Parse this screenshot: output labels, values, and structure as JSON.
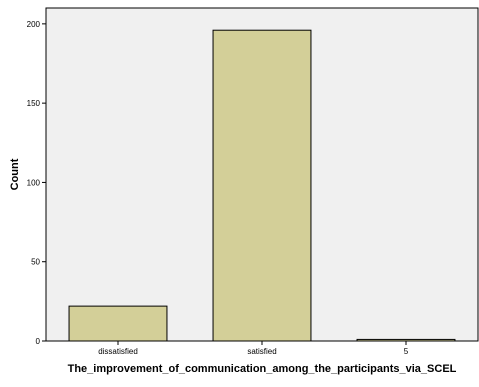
{
  "chart_data": {
    "type": "bar",
    "title": "",
    "xlabel": "The_improvement_of_communication_among_the_participants_via_SCEL",
    "ylabel": "Count",
    "categories": [
      "dissatisfied",
      "satisfied",
      "5"
    ],
    "values": [
      22,
      196,
      1
    ],
    "ylim": [
      0,
      210
    ],
    "yticks": [
      0,
      50,
      100,
      150,
      200
    ],
    "grid": false,
    "legend": "none",
    "colors": {
      "plot_background": "#f0f0f0",
      "bar_fill": "#d3cf98",
      "bar_stroke": "#000000"
    }
  }
}
